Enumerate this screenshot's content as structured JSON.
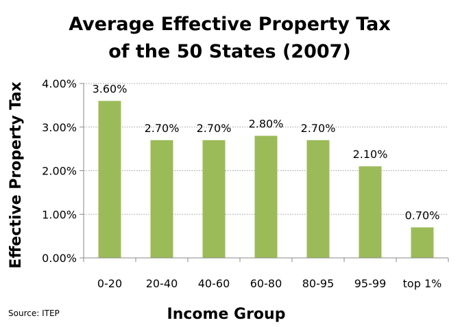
{
  "chart_data": {
    "type": "bar",
    "title_lines": [
      "Average Effective Property Tax",
      "of the 50 States (2007)"
    ],
    "xlabel": "Income Group",
    "ylabel": "Effective Property Tax",
    "categories": [
      "0-20",
      "20-40",
      "40-60",
      "60-80",
      "80-95",
      "95-99",
      "top 1%"
    ],
    "values": [
      3.6,
      2.7,
      2.7,
      2.8,
      2.7,
      2.1,
      0.7
    ],
    "data_labels": [
      "3.60%",
      "2.70%",
      "2.70%",
      "2.80%",
      "2.70%",
      "2.10%",
      "0.70%"
    ],
    "ylim": [
      0,
      4
    ],
    "yticks": [
      0,
      1,
      2,
      3,
      4
    ],
    "ytick_labels": [
      "0.00%",
      "1.00%",
      "2.00%",
      "3.00%",
      "4.00%"
    ],
    "grid": "horizontal dotted",
    "legend": "none",
    "bar_color": "#9BBB59",
    "source": "Source: ITEP"
  }
}
